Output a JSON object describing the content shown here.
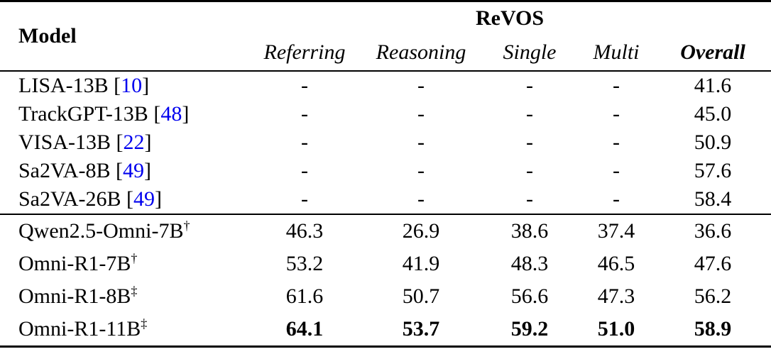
{
  "colors": {
    "citation": "#0000EE",
    "text": "#000000",
    "background": "#FFFFFF"
  },
  "table": {
    "header": {
      "model_col": "Model",
      "group_col": "ReVOS",
      "subcols": [
        "Referring",
        "Reasoning",
        "Single",
        "Multi",
        "Overall"
      ]
    },
    "punctuation": {
      "bracket_open": "[",
      "bracket_close": "]"
    },
    "group1": [
      {
        "name": "LISA-13B",
        "cite": "10",
        "vals": [
          "-",
          "-",
          "-",
          "-",
          "41.6"
        ]
      },
      {
        "name": "TrackGPT-13B",
        "cite": "48",
        "vals": [
          "-",
          "-",
          "-",
          "-",
          "45.0"
        ]
      },
      {
        "name": "VISA-13B",
        "cite": "22",
        "vals": [
          "-",
          "-",
          "-",
          "-",
          "50.9"
        ]
      },
      {
        "name": "Sa2VA-8B",
        "cite": "49",
        "vals": [
          "-",
          "-",
          "-",
          "-",
          "57.6"
        ]
      },
      {
        "name": "Sa2VA-26B",
        "cite": "49",
        "vals": [
          "-",
          "-",
          "-",
          "-",
          "58.4"
        ]
      }
    ],
    "group2": [
      {
        "name": "Qwen2.5-Omni-7B",
        "sup": "†",
        "vals": [
          "46.3",
          "26.9",
          "38.6",
          "37.4",
          "36.6"
        ]
      },
      {
        "name": "Omni-R1-7B",
        "sup": "†",
        "vals": [
          "53.2",
          "41.9",
          "48.3",
          "46.5",
          "47.6"
        ]
      },
      {
        "name": "Omni-R1-8B",
        "sup": "‡",
        "vals": [
          "61.6",
          "50.7",
          "56.6",
          "47.3",
          "56.2"
        ]
      },
      {
        "name": "Omni-R1-11B",
        "sup": "‡",
        "vals": [
          "64.1",
          "53.7",
          "59.2",
          "51.0",
          "58.9"
        ]
      }
    ]
  }
}
